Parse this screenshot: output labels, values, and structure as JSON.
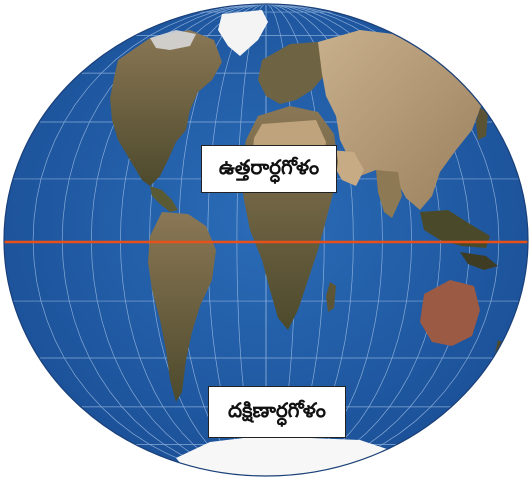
{
  "map": {
    "projection": "world map in an elliptical (oval) projection",
    "colors": {
      "ocean": "#1f5ba8",
      "ocean_light": "#3a78c2",
      "land_dark": "#4a4a2a",
      "land_mid": "#7a6a48",
      "land_light": "#b59a78",
      "ice": "#f2f2f2",
      "graticule": "#a9c6ea",
      "equator": "#e8501a",
      "label_border": "#222222"
    },
    "labels": {
      "northern_hemisphere": "ఉత్తరార్ధగోళం",
      "southern_hemisphere": "దక్షిణార్ధగోళం"
    },
    "features": {
      "equator": true,
      "graticule": true
    }
  }
}
